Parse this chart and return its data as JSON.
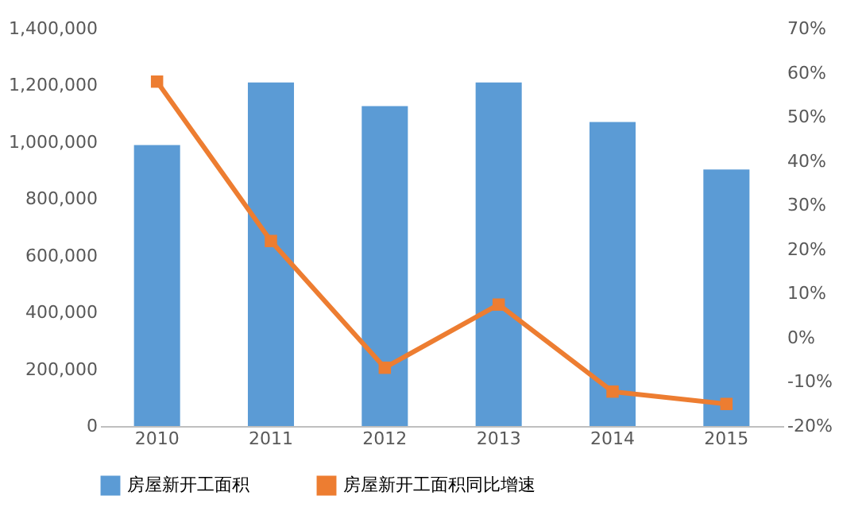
{
  "chart_data": {
    "type": "bar",
    "categories": [
      "2010",
      "2011",
      "2012",
      "2013",
      "2014",
      "2015"
    ],
    "series": [
      {
        "name": "房屋新开工面积",
        "color": "#5b9bd5",
        "values": [
          990000,
          1210000,
          1127000,
          1210000,
          1071000,
          904000
        ]
      },
      {
        "name": "房屋新开工面积同比增速",
        "type": "line",
        "axis": "y2",
        "color": "#ed7d31",
        "values": [
          58,
          21.9,
          -6.8,
          7.5,
          -12.2,
          -15
        ]
      }
    ],
    "ylim": [
      0,
      1400000
    ],
    "yticks": [
      0,
      {
        "value": 200000,
        "label": "200,000"
      },
      {
        "value": 400000,
        "label": "400,000"
      },
      {
        "value": 600000,
        "label": "600,000"
      },
      {
        "value": 800000,
        "label": "800,000"
      },
      {
        "value": 1000000,
        "label": "1,000,000"
      },
      {
        "value": 1200000,
        "label": "1,200,000"
      },
      {
        "value": 1400000,
        "label": "1,400,000"
      }
    ],
    "y2lim": [
      -20,
      70
    ],
    "y2ticks": [
      {
        "value": -20,
        "label": "-20%"
      },
      {
        "value": -10,
        "label": "-10%"
      },
      {
        "value": 0,
        "label": "0%"
      },
      {
        "value": 10,
        "label": "10%"
      },
      {
        "value": 20,
        "label": "20%"
      },
      {
        "value": 30,
        "label": "30%"
      },
      {
        "value": 40,
        "label": "40%"
      },
      {
        "value": 50,
        "label": "50%"
      },
      {
        "value": 60,
        "label": "60%"
      },
      {
        "value": 70,
        "label": "70%"
      }
    ],
    "grid": false,
    "legend": "bottom",
    "marker": "square",
    "line_style": "solid"
  }
}
